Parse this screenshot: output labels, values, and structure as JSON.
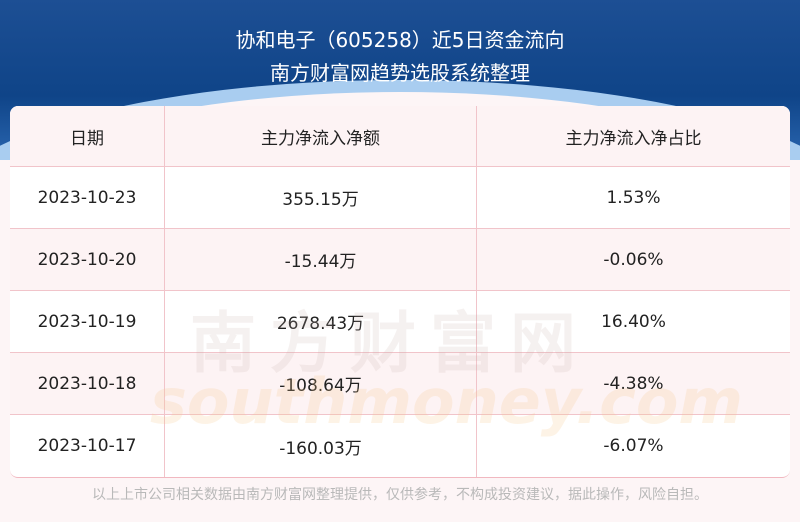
{
  "header": {
    "title": "协和电子（605258）近5日资金流向",
    "subtitle": "南方财富网趋势选股系统整理"
  },
  "table": {
    "columns": [
      "日期",
      "主力净流入净额",
      "主力净流入净占比"
    ],
    "rows": [
      [
        "2023-10-23",
        "355.15万",
        "1.53%"
      ],
      [
        "2023-10-20",
        "-15.44万",
        "-0.06%"
      ],
      [
        "2023-10-19",
        "2678.43万",
        "16.40%"
      ],
      [
        "2023-10-18",
        "-108.64万",
        "-4.38%"
      ],
      [
        "2023-10-17",
        "-160.03万",
        "-6.07%"
      ]
    ]
  },
  "watermark": {
    "cn": "南方财富网",
    "en": "southmoney.com"
  },
  "footer": "以上上市公司相关数据由南方财富网整理提供，仅供参考，不构成投资建议，据此操作，风险自担。",
  "colors": {
    "banner": "#0f4488",
    "row_alt": "#fdf3f4",
    "border": "#f1c4ca"
  }
}
